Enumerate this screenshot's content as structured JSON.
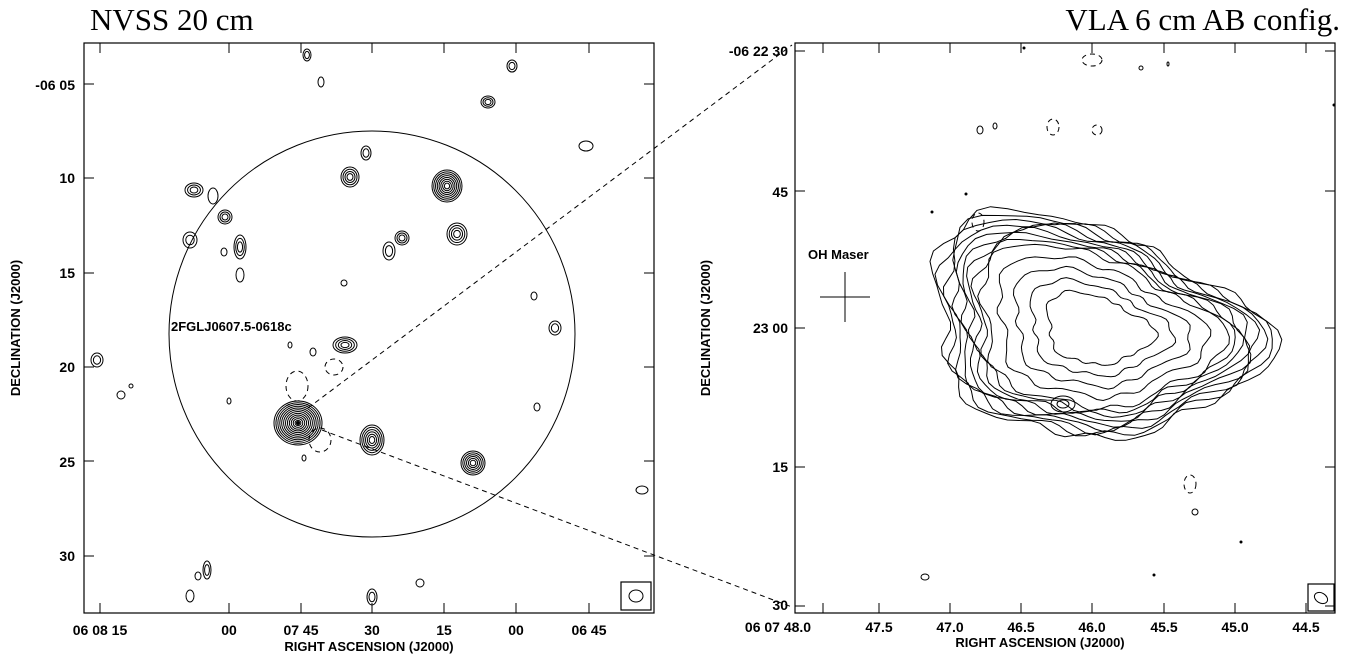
{
  "chart_data": [
    {
      "type": "contour",
      "title": "NVSS 20 cm",
      "xlabel": "RIGHT ASCENSION (J2000)",
      "ylabel": "DECLINATION (J2000)",
      "x_ticks": [
        "06 08 15",
        "00",
        "07 45",
        "30",
        "15",
        "00",
        "06 45"
      ],
      "y_ticks": [
        "-06 05",
        "10",
        "15",
        "20",
        "25",
        "30"
      ],
      "annotations": [
        {
          "text": "2FGLJ0607.5-0618c",
          "kind": "circle (Fermi source region)"
        }
      ],
      "marker_names": {
        "cross": "",
        "beam": "beam"
      }
    },
    {
      "type": "contour",
      "title": "VLA 6 cm AB config.",
      "xlabel": "RIGHT ASCENSION (J2000)",
      "ylabel": "DECLINATION (J2000)",
      "x_ticks": [
        "06 07 48.0",
        "47.5",
        "47.0",
        "46.5",
        "46.0",
        "45.5",
        "45.0",
        "44.5"
      ],
      "y_ticks": [
        "-06 22 30",
        "45",
        "23 00",
        "15",
        "30"
      ],
      "annotations": [
        {
          "text": "OH Maser",
          "kind": "cross"
        }
      ]
    }
  ]
}
